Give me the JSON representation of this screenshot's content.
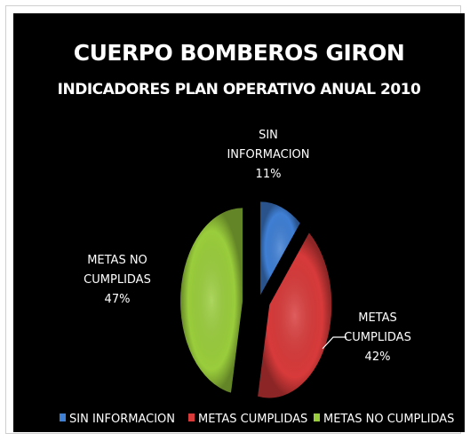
{
  "chart_data": {
    "type": "pie",
    "title": "CUERPO BOMBEROS GIRON",
    "subtitle": "INDICADORES PLAN OPERATIVO ANUAL 2010",
    "slices": [
      {
        "name": "SIN INFORMACION",
        "value": 11,
        "pct_label": "11%",
        "label_lines": [
          "SIN",
          "INFORMACION"
        ],
        "color": "#3f7fd4"
      },
      {
        "name": "METAS CUMPLIDAS",
        "value": 42,
        "pct_label": "42%",
        "label_lines": [
          "METAS",
          "CUMPLIDAS"
        ],
        "color": "#d83a3a"
      },
      {
        "name": "METAS NO CUMPLIDAS",
        "value": 47,
        "pct_label": "47%",
        "label_lines": [
          "METAS NO",
          "CUMPLIDAS"
        ],
        "color": "#9acd3c"
      }
    ],
    "legend": [
      "SIN INFORMACION",
      "METAS CUMPLIDAS",
      "METAS NO CUMPLIDAS"
    ],
    "legend_position": "bottom"
  }
}
